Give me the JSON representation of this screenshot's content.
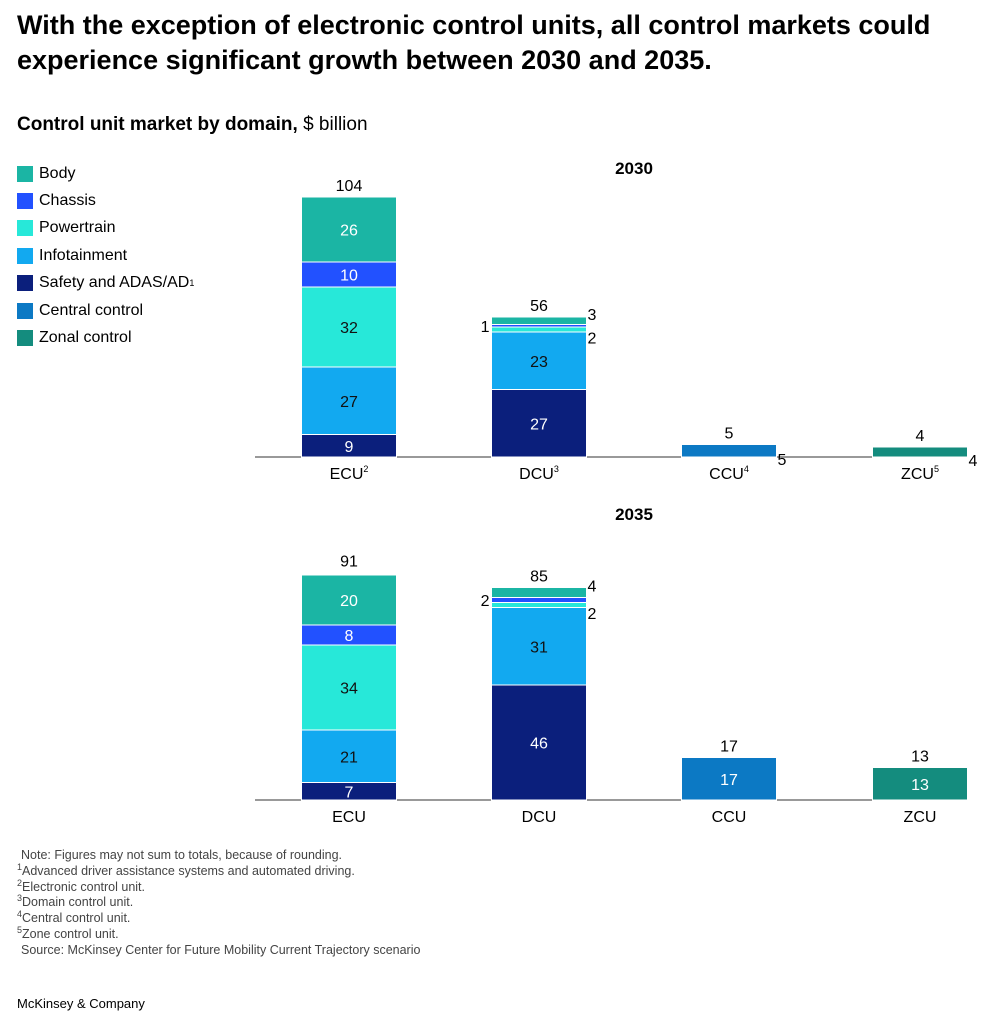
{
  "headline": "With the exception of electronic control units, all control markets could experience significant growth between 2030 and 2035.",
  "subtitle": {
    "bold": "Control unit market by domain,",
    "unit": " $ billion"
  },
  "legend": [
    {
      "key": "body",
      "label": "Body",
      "sup": "",
      "color": "#1BB5A4"
    },
    {
      "key": "chassis",
      "label": "Chassis",
      "sup": "",
      "color": "#2251FF"
    },
    {
      "key": "powertrain",
      "label": "Powertrain",
      "sup": "",
      "color": "#27E8D9"
    },
    {
      "key": "infotainment",
      "label": "Infotainment",
      "sup": "",
      "color": "#12A9F0"
    },
    {
      "key": "safety",
      "label": "Safety and ADAS/AD",
      "sup": "1",
      "color": "#0B1F7C"
    },
    {
      "key": "central",
      "label": "Central control",
      "sup": "",
      "color": "#0C79C4"
    },
    {
      "key": "zonal",
      "label": "Zonal control",
      "sup": "",
      "color": "#148C7E"
    }
  ],
  "chart_data": [
    {
      "type": "stacked-bar",
      "title": "2030",
      "categories": [
        {
          "label": "ECU",
          "sup": "2"
        },
        {
          "label": "DCU",
          "sup": "3"
        },
        {
          "label": "CCU",
          "sup": "4"
        },
        {
          "label": "ZCU",
          "sup": "5"
        }
      ],
      "totals": [
        104,
        56,
        5,
        4
      ],
      "series": [
        {
          "name": "Safety and ADAS/AD",
          "key": "safety",
          "values": [
            9,
            27,
            0,
            0
          ]
        },
        {
          "name": "Infotainment",
          "key": "infotainment",
          "values": [
            27,
            23,
            0,
            0
          ]
        },
        {
          "name": "Powertrain",
          "key": "powertrain",
          "values": [
            32,
            2,
            0,
            0
          ]
        },
        {
          "name": "Chassis",
          "key": "chassis",
          "values": [
            10,
            1,
            0,
            0
          ]
        },
        {
          "name": "Body",
          "key": "body",
          "values": [
            26,
            3,
            0,
            0
          ]
        },
        {
          "name": "Central control",
          "key": "central",
          "values": [
            0,
            0,
            5,
            0
          ]
        },
        {
          "name": "Zonal control",
          "key": "zonal",
          "values": [
            0,
            0,
            0,
            4
          ]
        }
      ]
    },
    {
      "type": "stacked-bar",
      "title": "2035",
      "categories": [
        {
          "label": "ECU",
          "sup": ""
        },
        {
          "label": "DCU",
          "sup": ""
        },
        {
          "label": "CCU",
          "sup": ""
        },
        {
          "label": "ZCU",
          "sup": ""
        }
      ],
      "totals": [
        91,
        85,
        17,
        13
      ],
      "series": [
        {
          "name": "Safety and ADAS/AD",
          "key": "safety",
          "values": [
            7,
            46,
            0,
            0
          ]
        },
        {
          "name": "Infotainment",
          "key": "infotainment",
          "values": [
            21,
            31,
            0,
            0
          ]
        },
        {
          "name": "Powertrain",
          "key": "powertrain",
          "values": [
            34,
            2,
            0,
            0
          ]
        },
        {
          "name": "Chassis",
          "key": "chassis",
          "values": [
            8,
            2,
            0,
            0
          ]
        },
        {
          "name": "Body",
          "key": "body",
          "values": [
            20,
            4,
            0,
            0
          ]
        },
        {
          "name": "Central control",
          "key": "central",
          "values": [
            0,
            0,
            17,
            0
          ]
        },
        {
          "name": "Zonal control",
          "key": "zonal",
          "values": [
            0,
            0,
            0,
            13
          ]
        }
      ]
    }
  ],
  "notes": {
    "note": "Note: Figures may not sum to totals, because of rounding.",
    "footnotes": [
      {
        "sup": "1",
        "text": "Advanced driver assistance systems and automated driving."
      },
      {
        "sup": "2",
        "text": "Electronic control unit."
      },
      {
        "sup": "3",
        "text": "Domain control unit."
      },
      {
        "sup": "4",
        "text": "Central control unit."
      },
      {
        "sup": "5",
        "text": "Zone control unit."
      }
    ],
    "source": "Source: McKinsey Center for Future Mobility Current Trajectory scenario"
  },
  "brand": "McKinsey & Company"
}
